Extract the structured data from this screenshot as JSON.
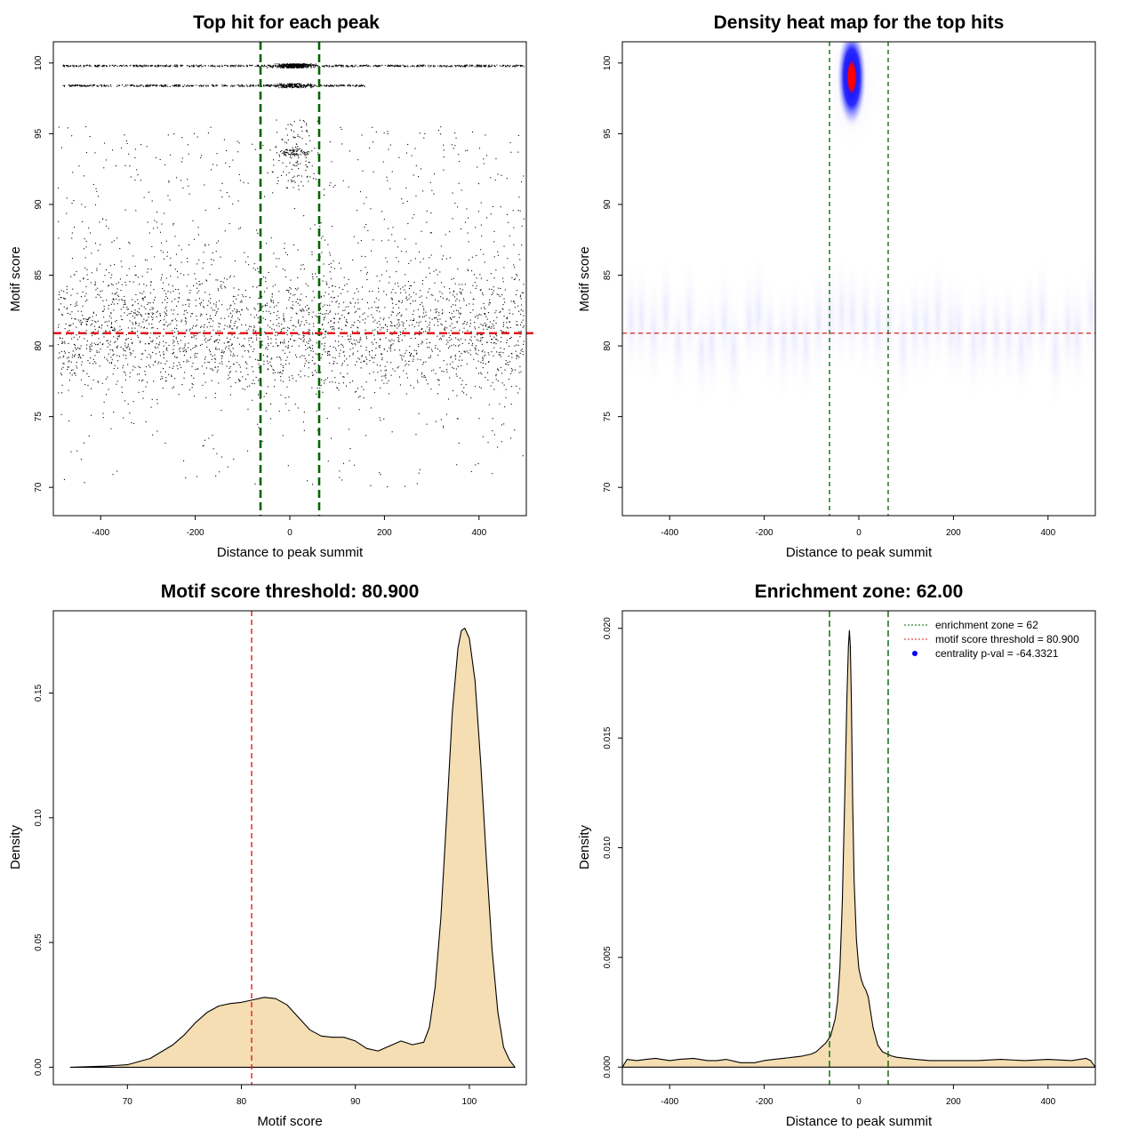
{
  "chart_data": [
    {
      "type": "scatter",
      "title": "Top hit for each peak",
      "xlabel": "Distance to peak summit",
      "ylabel": "Motif score",
      "xlim": [
        -500,
        500
      ],
      "ylim": [
        68,
        101.5
      ],
      "xticks": [
        -400,
        -200,
        0,
        200,
        400
      ],
      "yticks": [
        70,
        75,
        80,
        85,
        90,
        95,
        100
      ],
      "xtick_labels": [
        "-400",
        "-200",
        "0",
        "200",
        "400"
      ],
      "ytick_labels": [
        "70",
        "75",
        "80",
        "85",
        "90",
        "95",
        "100"
      ],
      "points_description": "~5000 motif hits; dense rows at score 100, 99.8, 98.4; dense center band between -60 and 60",
      "vlines": [
        {
          "x": -62,
          "color": "#006400"
        },
        {
          "x": 62,
          "color": "#006400"
        }
      ],
      "hlines": [
        {
          "y": 80.9,
          "color": "#e31a1c"
        }
      ]
    },
    {
      "type": "heatmap",
      "title": "Density heat map for the top hits",
      "xlabel": "Distance to peak summit",
      "ylabel": "Motif score",
      "xlim": [
        -500,
        500
      ],
      "ylim": [
        68,
        101.5
      ],
      "xticks": [
        -400,
        -200,
        0,
        200,
        400
      ],
      "yticks": [
        70,
        75,
        80,
        85,
        90,
        95,
        100
      ],
      "xtick_labels": [
        "-400",
        "-200",
        "0",
        "200",
        "400"
      ],
      "ytick_labels": [
        "70",
        "75",
        "80",
        "85",
        "90",
        "95",
        "100"
      ],
      "hotspot": {
        "x": -15,
        "y": 99,
        "description": "peak density (red) at score ~99 near summit, blue halo extending to ~95"
      },
      "vlines": [
        {
          "x": -62,
          "color": "#006400"
        },
        {
          "x": 62,
          "color": "#006400"
        }
      ],
      "hlines": [
        {
          "y": 80.9,
          "color": "#e31a1c"
        }
      ]
    },
    {
      "type": "area",
      "title": "Motif score threshold: 80.900",
      "xlabel": "Motif score",
      "ylabel": "Density",
      "xlim": [
        63.5,
        105
      ],
      "ylim": [
        -0.007,
        0.183
      ],
      "xticks": [
        70,
        80,
        90,
        100
      ],
      "yticks": [
        0.0,
        0.05,
        0.1,
        0.15
      ],
      "xtick_labels": [
        "70",
        "80",
        "90",
        "100"
      ],
      "ytick_labels": [
        "0.00",
        "0.05",
        "0.10",
        "0.15"
      ],
      "fill": "#f5deb3",
      "x": [
        65,
        68,
        70,
        72,
        74,
        75,
        76,
        77,
        78,
        79,
        80,
        81,
        82,
        83,
        84,
        85,
        86,
        87,
        88,
        89,
        90,
        91,
        92,
        93,
        94,
        95,
        96,
        96.5,
        97,
        97.5,
        98,
        98.5,
        99,
        99.3,
        99.6,
        100,
        100.5,
        101,
        101.5,
        102,
        102.5,
        103,
        103.5,
        104
      ],
      "y": [
        0.0,
        0.0004,
        0.001,
        0.0035,
        0.009,
        0.013,
        0.018,
        0.022,
        0.0245,
        0.0255,
        0.026,
        0.027,
        0.028,
        0.0275,
        0.025,
        0.02,
        0.015,
        0.0125,
        0.012,
        0.012,
        0.0105,
        0.0075,
        0.0065,
        0.0085,
        0.0105,
        0.009,
        0.01,
        0.016,
        0.032,
        0.06,
        0.1,
        0.142,
        0.168,
        0.175,
        0.176,
        0.172,
        0.155,
        0.122,
        0.083,
        0.047,
        0.022,
        0.008,
        0.003,
        0.0
      ],
      "vlines": [
        {
          "x": 80.9,
          "color": "#e31a1c"
        }
      ]
    },
    {
      "type": "area",
      "title": "Enrichment zone: 62.00",
      "xlabel": "Distance to peak summit",
      "ylabel": "Density",
      "xlim": [
        -500,
        500
      ],
      "ylim": [
        -0.0008,
        0.0208
      ],
      "xticks": [
        -400,
        -200,
        0,
        200,
        400
      ],
      "yticks": [
        0.0,
        0.005,
        0.01,
        0.015,
        0.02
      ],
      "xtick_labels": [
        "-400",
        "-200",
        "0",
        "200",
        "400"
      ],
      "ytick_labels": [
        "0.000",
        "0.005",
        "0.010",
        "0.015",
        "0.020"
      ],
      "fill": "#f5deb3",
      "x": [
        -500,
        -490,
        -470,
        -450,
        -430,
        -400,
        -380,
        -350,
        -320,
        -300,
        -280,
        -250,
        -220,
        -200,
        -180,
        -160,
        -140,
        -120,
        -100,
        -90,
        -80,
        -70,
        -60,
        -50,
        -45,
        -40,
        -35,
        -30,
        -25,
        -22,
        -20,
        -18,
        -16,
        -13,
        -10,
        -5,
        0,
        5,
        10,
        15,
        20,
        30,
        40,
        50,
        60,
        70,
        80,
        100,
        120,
        150,
        200,
        250,
        300,
        350,
        400,
        450,
        480,
        490,
        500
      ],
      "y": [
        0.0,
        0.00035,
        0.0003,
        0.00035,
        0.0004,
        0.0003,
        0.00035,
        0.0004,
        0.0003,
        0.0003,
        0.00035,
        0.0002,
        0.0002,
        0.0003,
        0.00035,
        0.0004,
        0.00045,
        0.0005,
        0.0006,
        0.0007,
        0.0009,
        0.0011,
        0.0014,
        0.0022,
        0.003,
        0.0045,
        0.0075,
        0.012,
        0.017,
        0.0192,
        0.0199,
        0.0192,
        0.017,
        0.012,
        0.0085,
        0.0058,
        0.0045,
        0.004,
        0.0037,
        0.0035,
        0.0032,
        0.0018,
        0.001,
        0.0007,
        0.0006,
        0.0005,
        0.00045,
        0.0004,
        0.00035,
        0.0003,
        0.0003,
        0.0003,
        0.00035,
        0.0003,
        0.00035,
        0.0003,
        0.0004,
        0.0003,
        0.0
      ],
      "vlines": [
        {
          "x": -62,
          "color": "#006400"
        },
        {
          "x": 62,
          "color": "#006400"
        }
      ],
      "legend": {
        "position": "top-right",
        "entries": [
          {
            "label": "enrichment zone = 62",
            "color": "#006400",
            "style": "dotted"
          },
          {
            "label": "motif score threshold = 80.900",
            "color": "#e31a1c",
            "style": "dotted"
          },
          {
            "label": "centrality p-val = -64.3321",
            "color": "#0000ff",
            "style": "point"
          }
        ]
      }
    }
  ]
}
